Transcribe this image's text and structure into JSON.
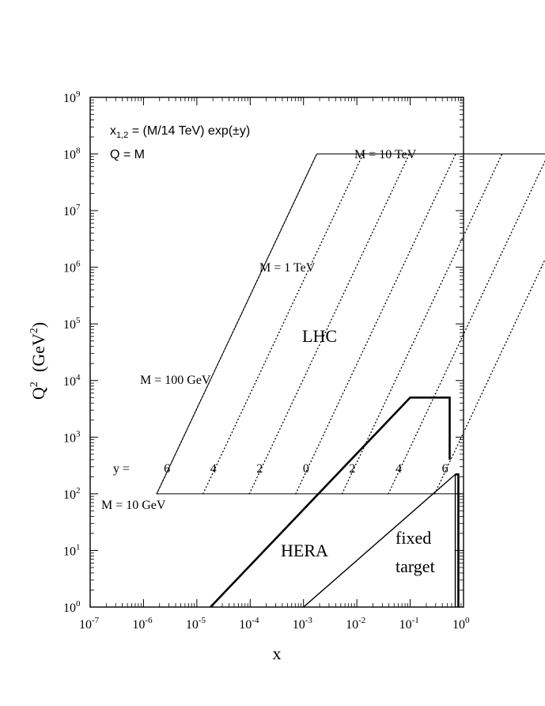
{
  "chart_data": {
    "type": "line",
    "xlabel": "x",
    "ylabel": "Q",
    "ylabel_sup": "2",
    "ylabel_unit": "(GeV",
    "ylabel_unit_sup": "2",
    "ylabel_unit_close": ")",
    "x_log": true,
    "y_log": true,
    "xlim_exp": [
      -7,
      0
    ],
    "ylim_exp": [
      0,
      9
    ],
    "x_tick_exps": [
      -7,
      -6,
      -5,
      -4,
      -3,
      -2,
      -1,
      0
    ],
    "y_tick_exps": [
      0,
      1,
      2,
      3,
      4,
      5,
      6,
      7,
      8,
      9
    ],
    "tick_base": "10",
    "formula_x": "x",
    "formula_sub": "1,2",
    "formula_rest": " = (M/14 TeV) exp(±y)",
    "formula_q": "Q = M",
    "region_labels": {
      "lhc": "LHC",
      "hera": "HERA",
      "fixed1": "fixed",
      "fixed2": "target"
    },
    "mass_labels": [
      "M = 10 TeV",
      "M = 1 TeV",
      "M = 100 GeV",
      "M = 10 GeV"
    ],
    "masses_gev": [
      10000,
      1000,
      100,
      10
    ],
    "rapidity_prefix": "y =",
    "rapidity_labels": [
      "6",
      "4",
      "2",
      "0",
      "2",
      "4",
      "6"
    ],
    "rapidity_values": [
      -6,
      -4,
      -2,
      0,
      2,
      4,
      6
    ],
    "sqrt_s_gev": 14000,
    "hera_boundary": [
      [
        1.8e-05,
        1
      ],
      [
        0.1,
        5000
      ],
      [
        0.55,
        5000
      ],
      [
        0.55,
        400
      ]
    ],
    "fixed_target_boundary": [
      [
        0.001,
        1
      ],
      [
        0.7,
        220
      ],
      [
        0.7,
        1
      ]
    ],
    "fixed_target_outer": [
      [
        0.7,
        220
      ],
      [
        0.8,
        220
      ],
      [
        0.8,
        1
      ]
    ]
  }
}
